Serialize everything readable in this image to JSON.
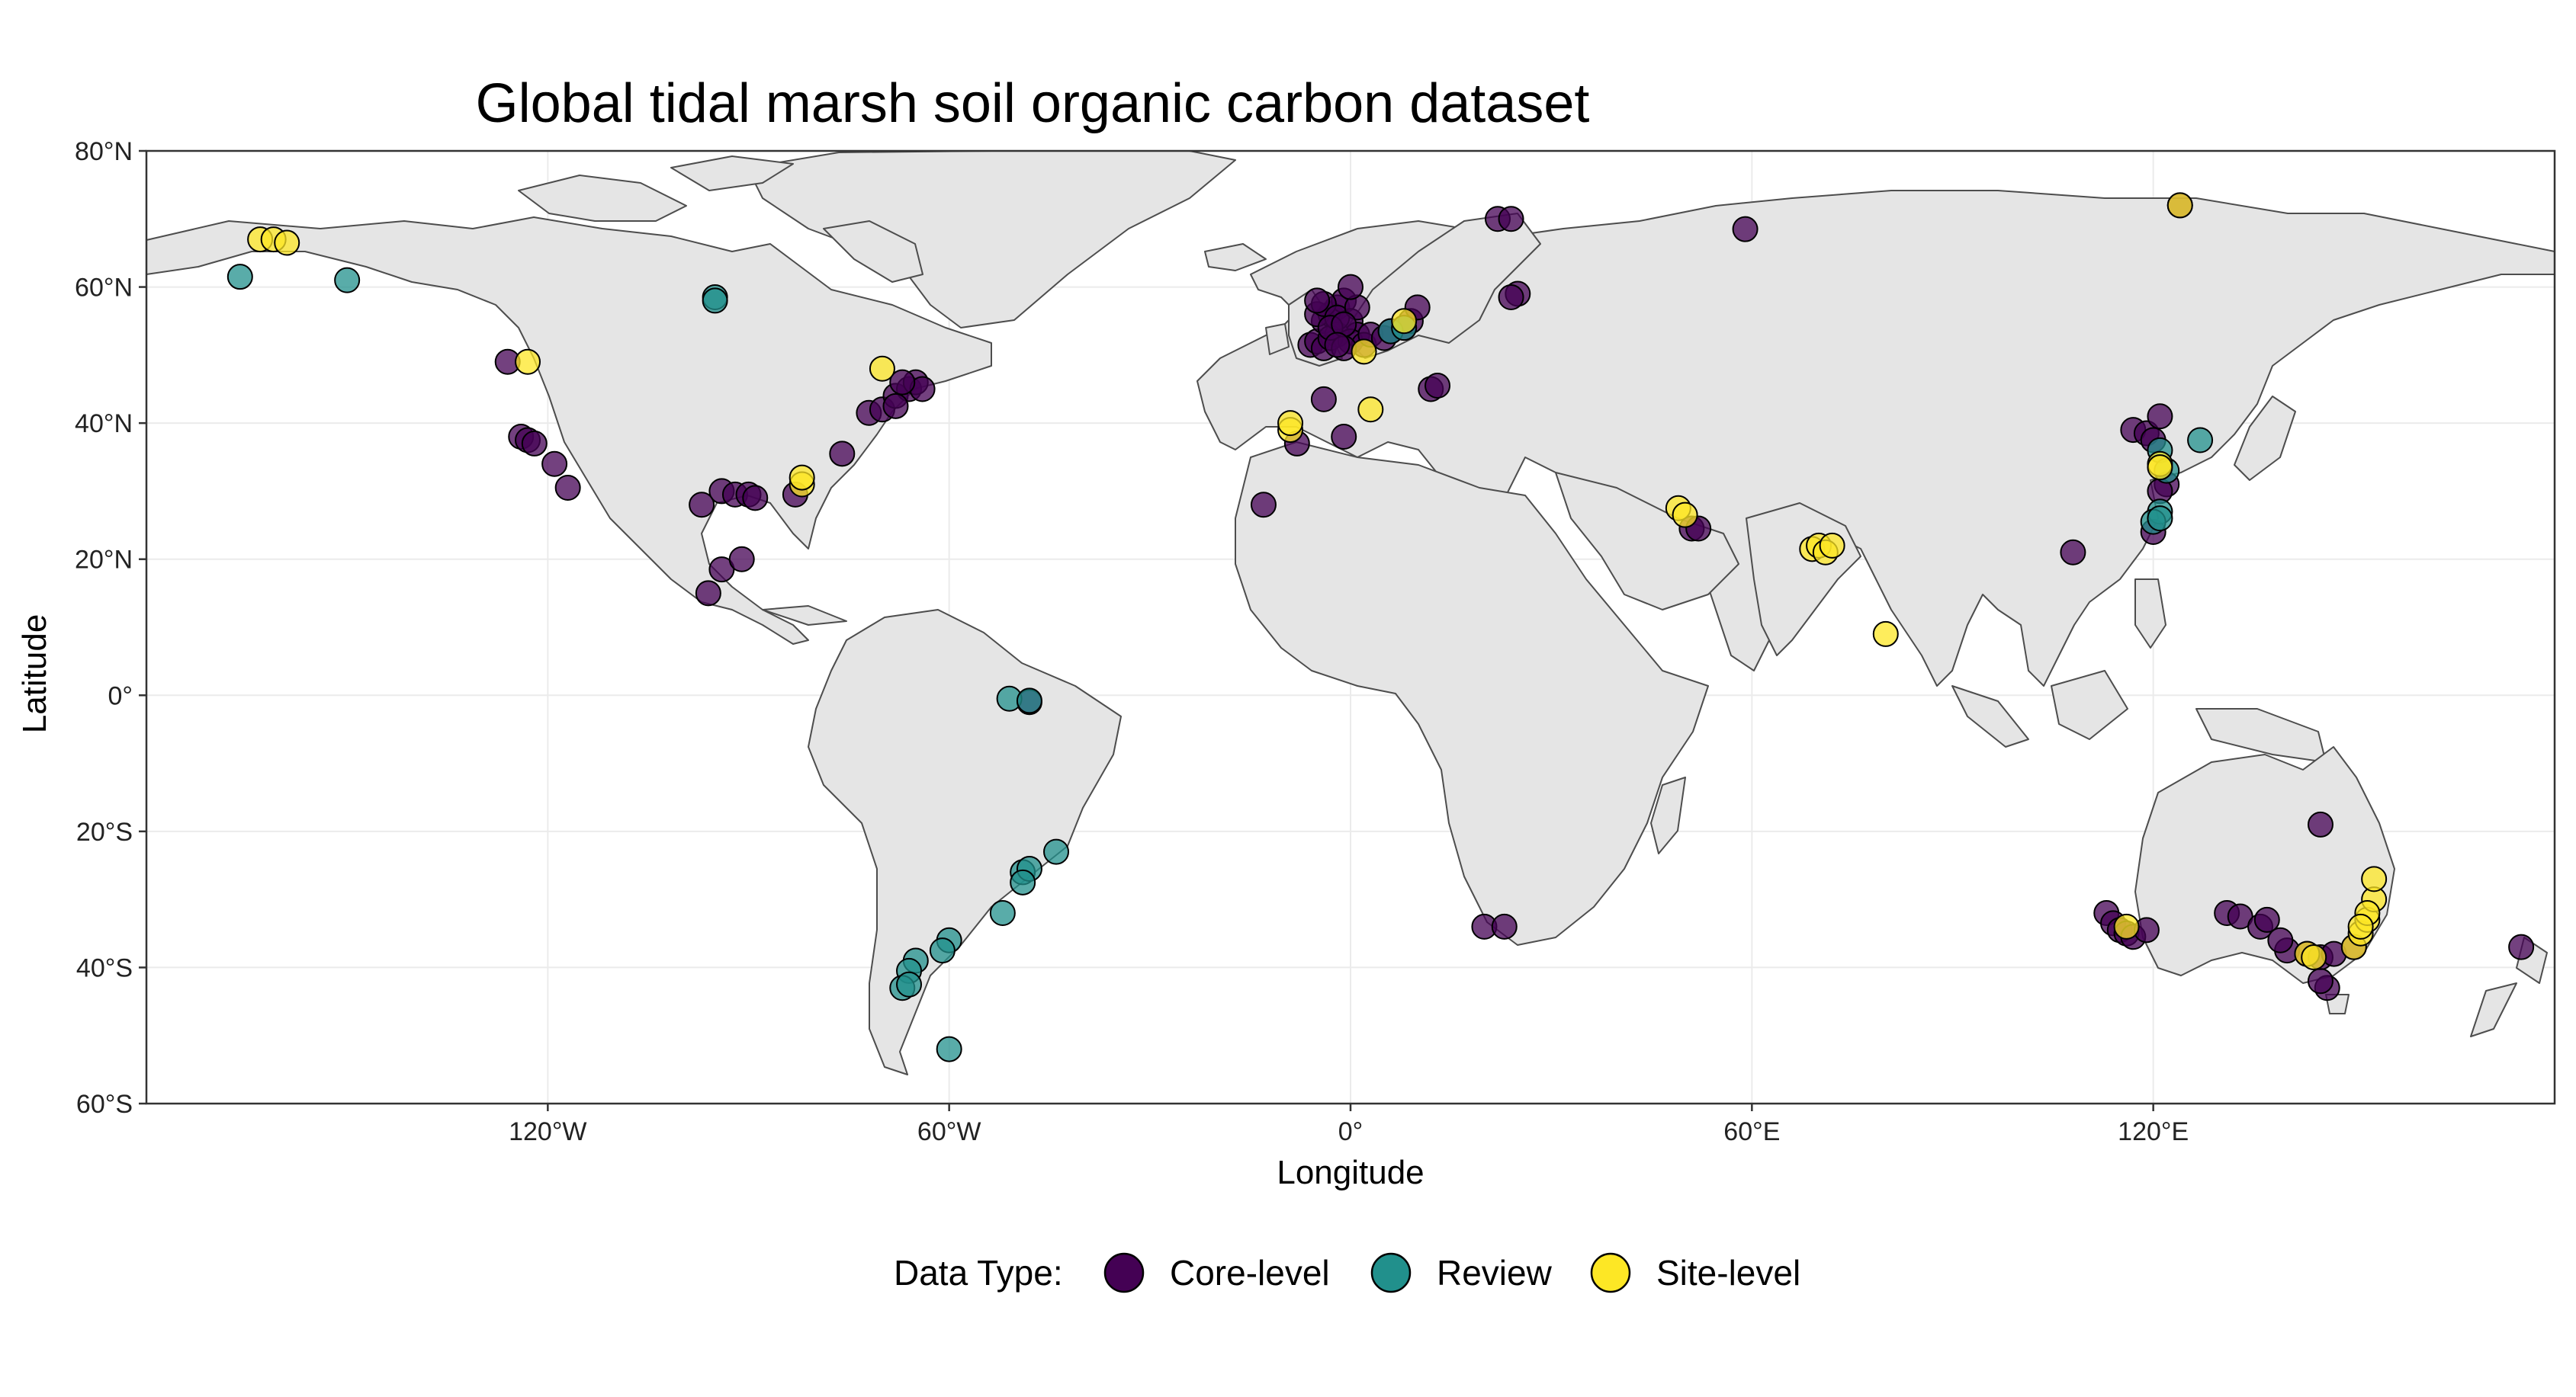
{
  "title": "Global tidal marsh soil organic carbon dataset",
  "xlabel": "Longitude",
  "ylabel": "Latitude",
  "legend": {
    "title": "Data Type:",
    "entries": [
      {
        "label": "Core-level",
        "color": "#440154"
      },
      {
        "label": "Review",
        "color": "#21908C"
      },
      {
        "label": "Site-level",
        "color": "#FDE725"
      }
    ]
  },
  "chart_data": {
    "type": "scatter",
    "title": "Global tidal marsh soil organic carbon dataset",
    "xlabel": "Longitude",
    "ylabel": "Latitude",
    "xlim": [
      -180,
      180
    ],
    "ylim": [
      -60,
      80
    ],
    "x_ticks": [
      {
        "value": -120,
        "label": "120°W"
      },
      {
        "value": -60,
        "label": "60°W"
      },
      {
        "value": 0,
        "label": "0°"
      },
      {
        "value": 60,
        "label": "60°E"
      },
      {
        "value": 120,
        "label": "120°E"
      }
    ],
    "y_ticks": [
      {
        "value": 80,
        "label": "80°N"
      },
      {
        "value": 60,
        "label": "60°N"
      },
      {
        "value": 40,
        "label": "40°N"
      },
      {
        "value": 20,
        "label": "20°N"
      },
      {
        "value": 0,
        "label": "0°"
      },
      {
        "value": -20,
        "label": "20°S"
      },
      {
        "value": -40,
        "label": "40°S"
      },
      {
        "value": -60,
        "label": "60°S"
      }
    ],
    "grid": true,
    "legend_position": "bottom",
    "colors": {
      "Core-level": "#440154",
      "Review": "#21908C",
      "Site-level": "#FDE725"
    },
    "series": [
      {
        "name": "Core-level",
        "points": [
          [
            -126,
            49
          ],
          [
            -124,
            38
          ],
          [
            -123,
            37.5
          ],
          [
            -122,
            37
          ],
          [
            -119,
            34
          ],
          [
            -117,
            30.5
          ],
          [
            -97,
            28
          ],
          [
            -94,
            30
          ],
          [
            -92,
            29.5
          ],
          [
            -90,
            29.5
          ],
          [
            -89,
            29
          ],
          [
            -94,
            18.5
          ],
          [
            -91,
            20
          ],
          [
            -96,
            15
          ],
          [
            -83,
            29.5
          ],
          [
            -76,
            35.5
          ],
          [
            -72,
            41.5
          ],
          [
            -70,
            42
          ],
          [
            -68,
            44
          ],
          [
            -66,
            45
          ],
          [
            -65,
            46
          ],
          [
            -64,
            45
          ],
          [
            -67,
            46
          ],
          [
            -68,
            42.5
          ],
          [
            -48,
            -1
          ],
          [
            -6,
            51.5
          ],
          [
            -5,
            52
          ],
          [
            -4,
            55
          ],
          [
            -3,
            56
          ],
          [
            -2,
            57
          ],
          [
            -1,
            58
          ],
          [
            0,
            55
          ],
          [
            1,
            53
          ],
          [
            -2,
            53
          ],
          [
            -4,
            51
          ],
          [
            -3,
            52.5
          ],
          [
            0,
            52
          ],
          [
            2,
            51.5
          ],
          [
            -1,
            51
          ],
          [
            -5,
            56
          ],
          [
            -4,
            57.5
          ],
          [
            -2,
            55.5
          ],
          [
            1,
            57
          ],
          [
            0,
            60
          ],
          [
            3,
            53
          ],
          [
            5,
            52.5
          ],
          [
            6,
            53.5
          ],
          [
            8,
            54
          ],
          [
            9,
            55
          ],
          [
            10,
            57
          ],
          [
            -3,
            54
          ],
          [
            -1,
            54.5
          ],
          [
            -2,
            51.5
          ],
          [
            -5,
            58
          ],
          [
            -4,
            43.5
          ],
          [
            -8,
            37
          ],
          [
            -1,
            38
          ],
          [
            12,
            45
          ],
          [
            13,
            45.5
          ],
          [
            -13,
            28
          ],
          [
            22,
            70
          ],
          [
            24,
            70
          ],
          [
            25,
            59
          ],
          [
            24,
            58.5
          ],
          [
            59,
            68.5
          ],
          [
            51,
            24.5
          ],
          [
            52,
            24.5
          ],
          [
            117,
            39
          ],
          [
            119,
            38.5
          ],
          [
            120,
            37.5
          ],
          [
            121,
            41
          ],
          [
            122,
            31
          ],
          [
            121,
            30
          ],
          [
            120,
            24
          ],
          [
            108,
            21
          ],
          [
            124,
            72
          ],
          [
            113,
            -32
          ],
          [
            114,
            -33.5
          ],
          [
            115,
            -34.5
          ],
          [
            116,
            -35
          ],
          [
            117,
            -35.5
          ],
          [
            119,
            -34.5
          ],
          [
            131,
            -32
          ],
          [
            133,
            -32.5
          ],
          [
            136,
            -34
          ],
          [
            137,
            -33
          ],
          [
            140,
            -37.5
          ],
          [
            143,
            -38
          ],
          [
            145,
            -38.5
          ],
          [
            147,
            -38
          ],
          [
            146,
            -43
          ],
          [
            145,
            -42
          ],
          [
            139,
            -36
          ],
          [
            150,
            -37
          ],
          [
            145,
            -19
          ],
          [
            175,
            -37
          ],
          [
            20,
            -34
          ],
          [
            23,
            -34
          ]
        ]
      },
      {
        "name": "Review",
        "points": [
          [
            -166,
            61.5
          ],
          [
            -150,
            61
          ],
          [
            -95,
            58.5
          ],
          [
            -95,
            58
          ],
          [
            6,
            53.5
          ],
          [
            8,
            54
          ],
          [
            -51,
            -0.5
          ],
          [
            -48,
            -0.8
          ],
          [
            -49,
            -26
          ],
          [
            -48,
            -25.5
          ],
          [
            -49,
            -27.5
          ],
          [
            -52,
            -32
          ],
          [
            -44,
            -23
          ],
          [
            -60,
            -36
          ],
          [
            -61,
            -37.5
          ],
          [
            -65,
            -39
          ],
          [
            -66,
            -40.5
          ],
          [
            -67,
            -43
          ],
          [
            -66,
            -42.5
          ],
          [
            -60,
            -52
          ],
          [
            121,
            36
          ],
          [
            122,
            33
          ],
          [
            121,
            27
          ],
          [
            120,
            25.5
          ],
          [
            127,
            37.5
          ],
          [
            121,
            26
          ]
        ]
      },
      {
        "name": "Site-level",
        "points": [
          [
            -163,
            67
          ],
          [
            -161,
            67
          ],
          [
            -159,
            66.5
          ],
          [
            -123,
            49
          ],
          [
            -82,
            31
          ],
          [
            -82,
            32
          ],
          [
            -70,
            48
          ],
          [
            -9,
            39
          ],
          [
            -9,
            40
          ],
          [
            3,
            42
          ],
          [
            2,
            50.5
          ],
          [
            8,
            55
          ],
          [
            49,
            27.5
          ],
          [
            50,
            26.5
          ],
          [
            69,
            21.5
          ],
          [
            70,
            22
          ],
          [
            71,
            21
          ],
          [
            72,
            22
          ],
          [
            80,
            9
          ],
          [
            121,
            34
          ],
          [
            121,
            33.5
          ],
          [
            124,
            72
          ],
          [
            116,
            -34
          ],
          [
            143,
            -38
          ],
          [
            144,
            -38.5
          ],
          [
            150,
            -37
          ],
          [
            151,
            -35
          ],
          [
            152,
            -33
          ],
          [
            153,
            -30
          ],
          [
            153,
            -27
          ],
          [
            152,
            -32
          ],
          [
            151,
            -34
          ]
        ]
      }
    ]
  }
}
